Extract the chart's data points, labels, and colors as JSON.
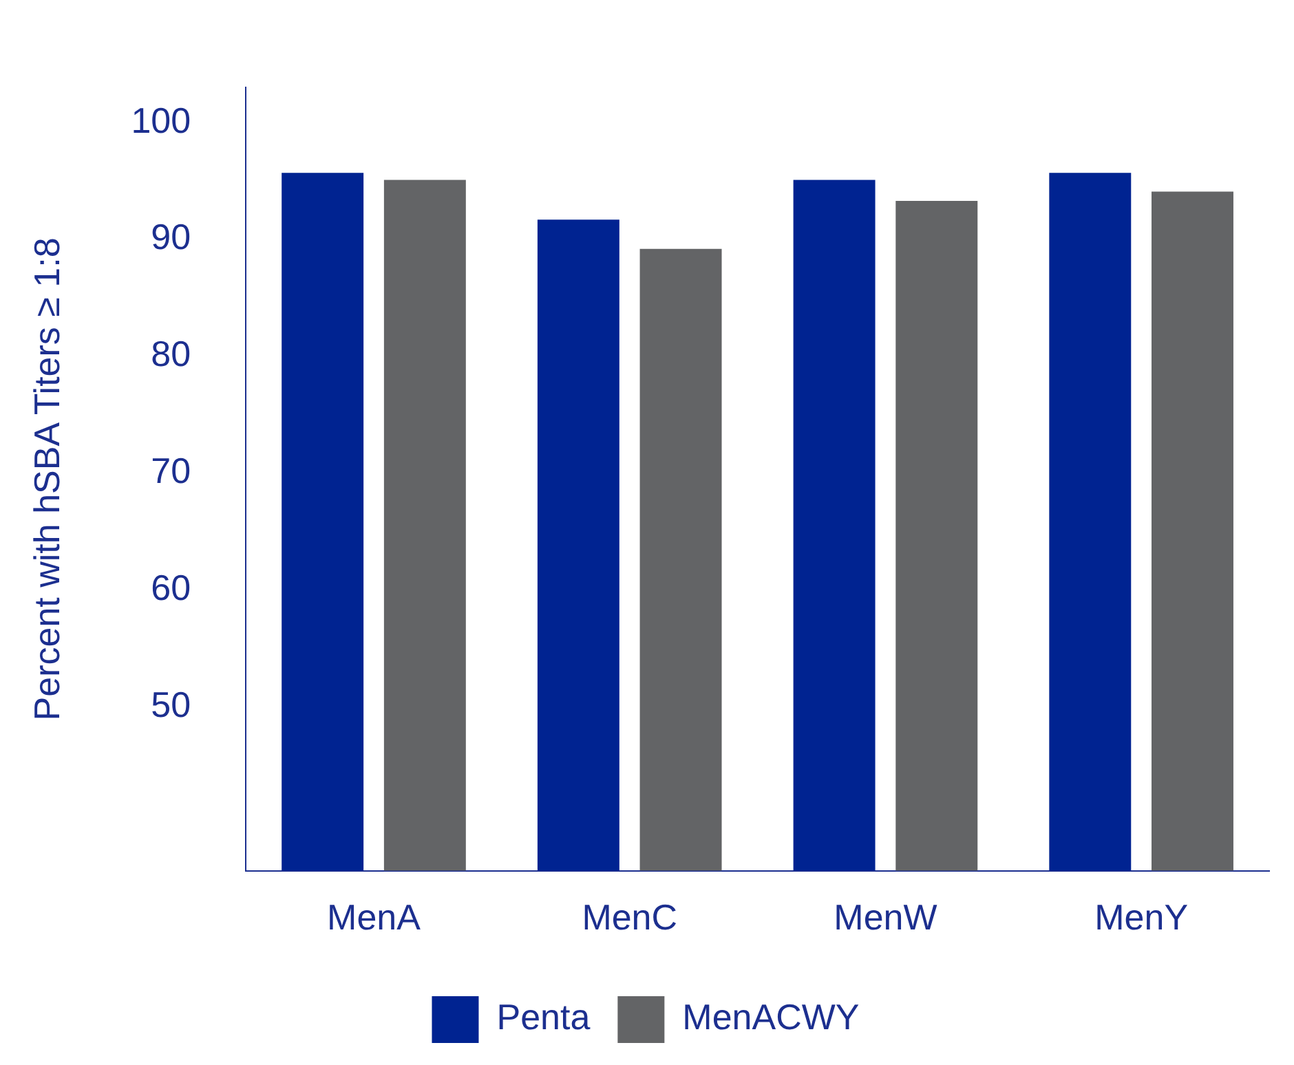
{
  "chart_data": {
    "type": "bar",
    "ylabel": "Percent with hSBA Titers ≥ 1:8",
    "categories": [
      "MenA",
      "MenC",
      "MenW",
      "MenY"
    ],
    "series": [
      {
        "name": "Penta",
        "color": "#002391",
        "values": [
          95.7,
          91.7,
          95.1,
          95.7
        ]
      },
      {
        "name": "MenACWY",
        "color": "#636466",
        "values": [
          95.1,
          89.2,
          93.3,
          94.1
        ]
      }
    ],
    "ylim": [
      36,
      103
    ],
    "yticks": [
      50,
      60,
      70,
      80,
      90,
      100
    ],
    "grid": false,
    "legend": "bottom"
  }
}
